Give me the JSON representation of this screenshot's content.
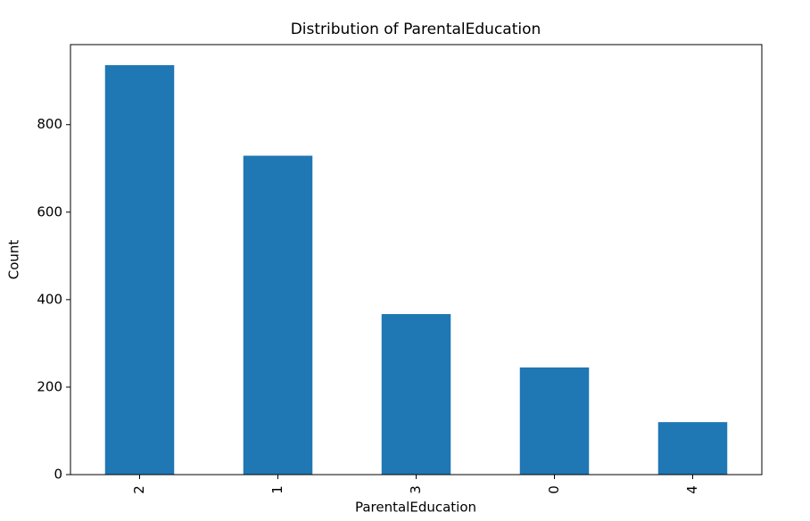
{
  "chart_data": {
    "type": "bar",
    "title": "Distribution of ParentalEducation",
    "x_label": "ParentalEducation",
    "y_label": "Count",
    "categories": [
      "2",
      "1",
      "3",
      "0",
      "4"
    ],
    "values": [
      936,
      729,
      367,
      245,
      120
    ],
    "color": "#1f77b4",
    "ylim": [
      0,
      983
    ],
    "yticks": [
      0,
      200,
      400,
      600,
      800
    ],
    "grid": false
  }
}
